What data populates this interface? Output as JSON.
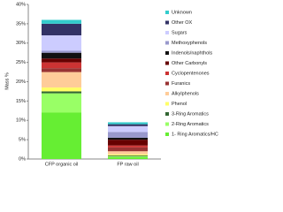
{
  "chart_data": {
    "type": "stacked-bar",
    "y_label": "Mass %",
    "categories": [
      "CFP organic oil",
      "FP raw oil"
    ],
    "ylim": [
      0,
      40
    ],
    "yticks": [
      {
        "value": 0,
        "label": "0%"
      },
      {
        "value": 5,
        "label": "5%"
      },
      {
        "value": 10,
        "label": "10%"
      },
      {
        "value": 15,
        "label": "15%"
      },
      {
        "value": 20,
        "label": "20%"
      },
      {
        "value": 25,
        "label": "25%"
      },
      {
        "value": 30,
        "label": "30%"
      },
      {
        "value": 35,
        "label": "35%"
      },
      {
        "value": 40,
        "label": "40%"
      }
    ],
    "series": [
      {
        "name": "1- Ring Aromatics/HC",
        "color": "#66ee33",
        "values": [
          12,
          0.5
        ]
      },
      {
        "name": "2-Ring Aromatics",
        "color": "#99ff66",
        "values": [
          5,
          0.2
        ]
      },
      {
        "name": "3-Ring Aromatics",
        "color": "#336633",
        "values": [
          0.5,
          0.2
        ]
      },
      {
        "name": "Phenol",
        "color": "#ffff66",
        "values": [
          1,
          0.3
        ]
      },
      {
        "name": "Alkylphenols",
        "color": "#ffcc99",
        "values": [
          4,
          0.8
        ]
      },
      {
        "name": "Furanics",
        "color": "#993333",
        "values": [
          1,
          1
        ]
      },
      {
        "name": "Cyclopentenones",
        "color": "#cc3333",
        "values": [
          1.5,
          0.5
        ]
      },
      {
        "name": "Other Carbonyls",
        "color": "#660000",
        "values": [
          1,
          1.5
        ]
      },
      {
        "name": "Indenols/naphthols",
        "color": "#111111",
        "values": [
          1.5,
          0.5
        ]
      },
      {
        "name": "Methoxyphenols",
        "color": "#9999cc",
        "values": [
          0.5,
          1.5
        ]
      },
      {
        "name": "Sugars",
        "color": "#ccccff",
        "values": [
          4,
          1.5
        ]
      },
      {
        "name": "Other OX",
        "color": "#333366",
        "values": [
          3,
          0.5
        ]
      },
      {
        "name": "Unknown",
        "color": "#33cccc",
        "values": [
          1,
          0.5
        ]
      }
    ]
  }
}
